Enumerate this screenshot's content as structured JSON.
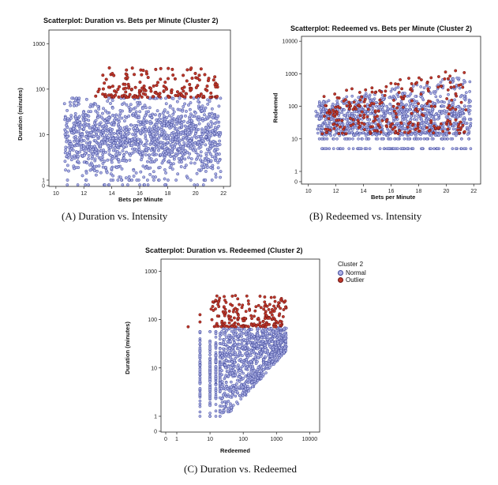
{
  "colors": {
    "normal": "#aeb3e6",
    "normal_edge": "#3d4598",
    "outlier": "#c0392b",
    "outlier_edge": "#6a1212"
  },
  "legend": {
    "title": "Cluster 2",
    "items": [
      "Normal",
      "Outlier"
    ]
  },
  "captions": {
    "a": "(A) Duration vs. Intensity",
    "b": "(B) Redeemed vs. Intensity",
    "c": "(C) Duration vs. Redeemed"
  },
  "chart_data": [
    {
      "id": "a",
      "type": "scatter",
      "title": "Scatterplot: Duration vs. Bets per Minute (Cluster 2)",
      "xlabel": "Bets per Minute",
      "ylabel": "Duration (minutes)",
      "x_ticks": [
        "10",
        "12",
        "14",
        "16",
        "18",
        "20",
        "22"
      ],
      "y_ticks": [
        "0",
        "1",
        "10",
        "100",
        "1000"
      ],
      "xlim": [
        9.5,
        22.5
      ],
      "ylim": [
        0,
        2000
      ],
      "y_scale": "log",
      "series": [
        {
          "name": "Normal",
          "x_range": [
            10.5,
            21.8
          ],
          "y_range": [
            1,
            65
          ]
        },
        {
          "name": "Outlier",
          "x_range": [
            12.5,
            21.5
          ],
          "y_range": [
            65,
            300
          ]
        }
      ]
    },
    {
      "id": "b",
      "type": "scatter",
      "title": "Scatterplot: Redeemed vs. Bets per Minute (Cluster 2)",
      "xlabel": "Bets per Minute",
      "ylabel": "Redeemed",
      "x_ticks": [
        "10",
        "12",
        "14",
        "16",
        "18",
        "20",
        "22"
      ],
      "y_ticks": [
        "0",
        "1",
        "10",
        "100",
        "1000",
        "10000"
      ],
      "xlim": [
        9.5,
        22.5
      ],
      "ylim": [
        0,
        20000
      ],
      "y_scale": "log",
      "series": [
        {
          "name": "Normal",
          "x_range": [
            10.5,
            21.8
          ],
          "y_range": [
            5,
            1500
          ]
        },
        {
          "name": "Outlier",
          "x_range": [
            11,
            21.5
          ],
          "y_range": [
            10,
            2200
          ]
        }
      ]
    },
    {
      "id": "c",
      "type": "scatter",
      "title": "Scatterplot: Duration vs. Redeemed (Cluster 2)",
      "xlabel": "Redeemed",
      "ylabel": "Duration (minutes)",
      "x_ticks": [
        "0",
        "1",
        "10",
        "100",
        "1000",
        "10000"
      ],
      "y_ticks": [
        "0",
        "1",
        "10",
        "100",
        "1000"
      ],
      "xlim": [
        0,
        20000
      ],
      "ylim": [
        0,
        2000
      ],
      "x_scale": "log",
      "y_scale": "log",
      "series": [
        {
          "name": "Normal",
          "x_range": [
            5,
            1500
          ],
          "y_range": [
            1,
            70
          ]
        },
        {
          "name": "Outlier",
          "x_range": [
            5,
            2500
          ],
          "y_range": [
            65,
            320
          ]
        }
      ]
    }
  ]
}
